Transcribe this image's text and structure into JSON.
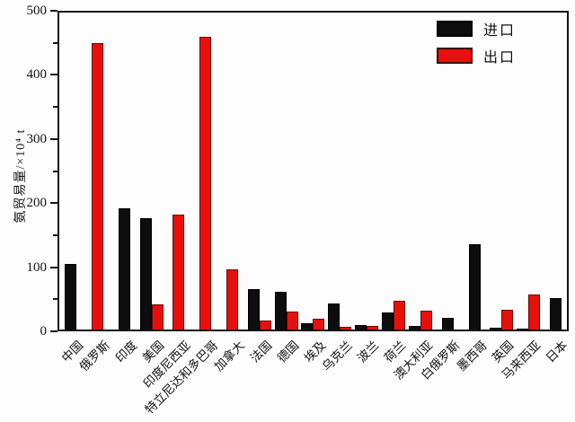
{
  "chart_data": {
    "type": "bar",
    "title": "",
    "xlabel": "",
    "ylabel": "氨贸易量/×10⁴ t",
    "ylim": [
      0,
      500
    ],
    "yticks": [
      0,
      100,
      200,
      300,
      400,
      500
    ],
    "minor_tick_step": 50,
    "grid": false,
    "legend_position": "top-right-inside",
    "categories": [
      "中国",
      "俄罗斯",
      "印度",
      "美国",
      "印度尼西亚",
      "特立尼达和多巴哥",
      "加拿大",
      "法国",
      "德国",
      "埃及",
      "乌克兰",
      "波兰",
      "荷兰",
      "澳大利亚",
      "白俄罗斯",
      "墨西哥",
      "英国",
      "马来西亚",
      "日本"
    ],
    "series": [
      {
        "name": "进口",
        "color": "#0d0d0d",
        "values": [
          105,
          0,
          192,
          176,
          0,
          0,
          0,
          66,
          61,
          12,
          43,
          10,
          29,
          8,
          21,
          136,
          6,
          4,
          52
        ]
      },
      {
        "name": "出口",
        "color": "#e8100c",
        "values": [
          0,
          450,
          0,
          42,
          182,
          460,
          96,
          17,
          31,
          20,
          7,
          9,
          48,
          32,
          0,
          0,
          33,
          58,
          0
        ]
      }
    ]
  }
}
